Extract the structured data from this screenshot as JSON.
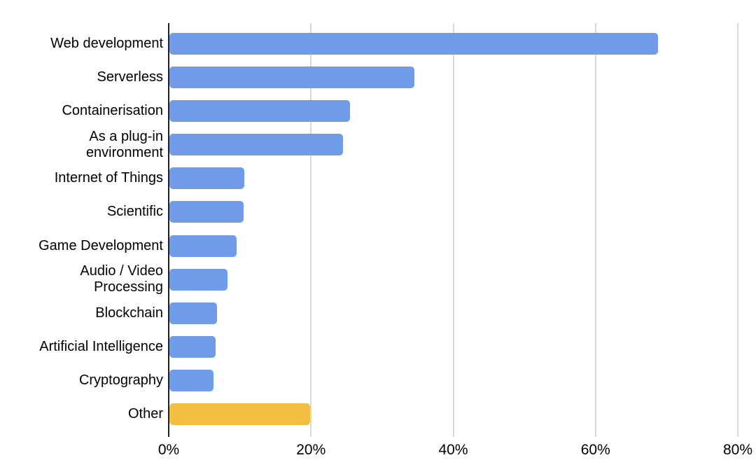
{
  "chart_data": {
    "type": "bar",
    "orientation": "horizontal",
    "title": "",
    "xlabel": "",
    "ylabel": "",
    "unit": "%",
    "xlim": [
      0,
      80
    ],
    "x_tick_values": [
      0,
      20,
      40,
      60,
      80
    ],
    "x_tick_labels": [
      "0%",
      "20%",
      "40%",
      "60%",
      "80%"
    ],
    "grid": "vertical-gridlines-on",
    "legend": "none",
    "categories": [
      "Web development",
      "Serverless",
      "Containerisation",
      "As a plug-in environment",
      "Internet of Things",
      "Scientific",
      "Game Development",
      "Audio / Video Processing",
      "Blockchain",
      "Artificial Intelligence",
      "Cryptography",
      "Other"
    ],
    "values": [
      68.7,
      34.4,
      25.4,
      24.4,
      10.5,
      10.4,
      9.4,
      8.2,
      6.7,
      6.5,
      6.2,
      19.8
    ],
    "colors": [
      "#6F9BE8",
      "#6F9BE8",
      "#6F9BE8",
      "#6F9BE8",
      "#6F9BE8",
      "#6F9BE8",
      "#6F9BE8",
      "#6F9BE8",
      "#6F9BE8",
      "#6F9BE8",
      "#6F9BE8",
      "#F0BF41"
    ],
    "label_line_breaks": {
      "As a plug-in environment": "As a plug-in\nenvironment",
      "Audio / Video Processing": "Audio / Video\nProcessing"
    }
  },
  "colors": {
    "bar_blue": "#6F9BE8",
    "bar_orange": "#F0BF41",
    "axis_line": "#212121",
    "gridline": "#d9d9d9",
    "text": "#000000",
    "background": "#ffffff"
  }
}
